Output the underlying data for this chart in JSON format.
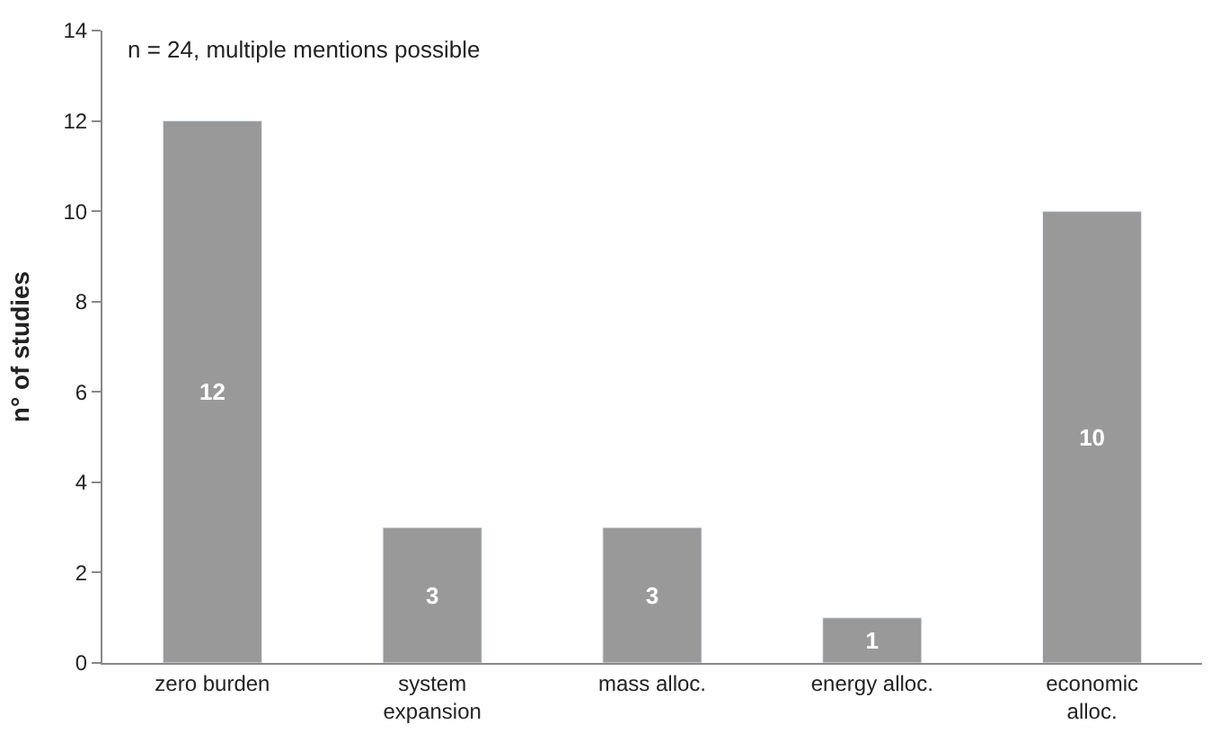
{
  "chart_data": {
    "type": "bar",
    "ylabel": "n° of studies",
    "categories": [
      "zero burden",
      "system\nexpansion",
      "mass alloc.",
      "energy alloc.",
      "economic\nalloc."
    ],
    "values": [
      12,
      3,
      3,
      1,
      10
    ],
    "color": "#999999",
    "ylim": [
      0,
      14
    ],
    "yticks": [
      0,
      2,
      4,
      6,
      8,
      10,
      12,
      14
    ],
    "data_labels": true,
    "annotations": [
      "n = 24, multiple mentions possible"
    ]
  }
}
